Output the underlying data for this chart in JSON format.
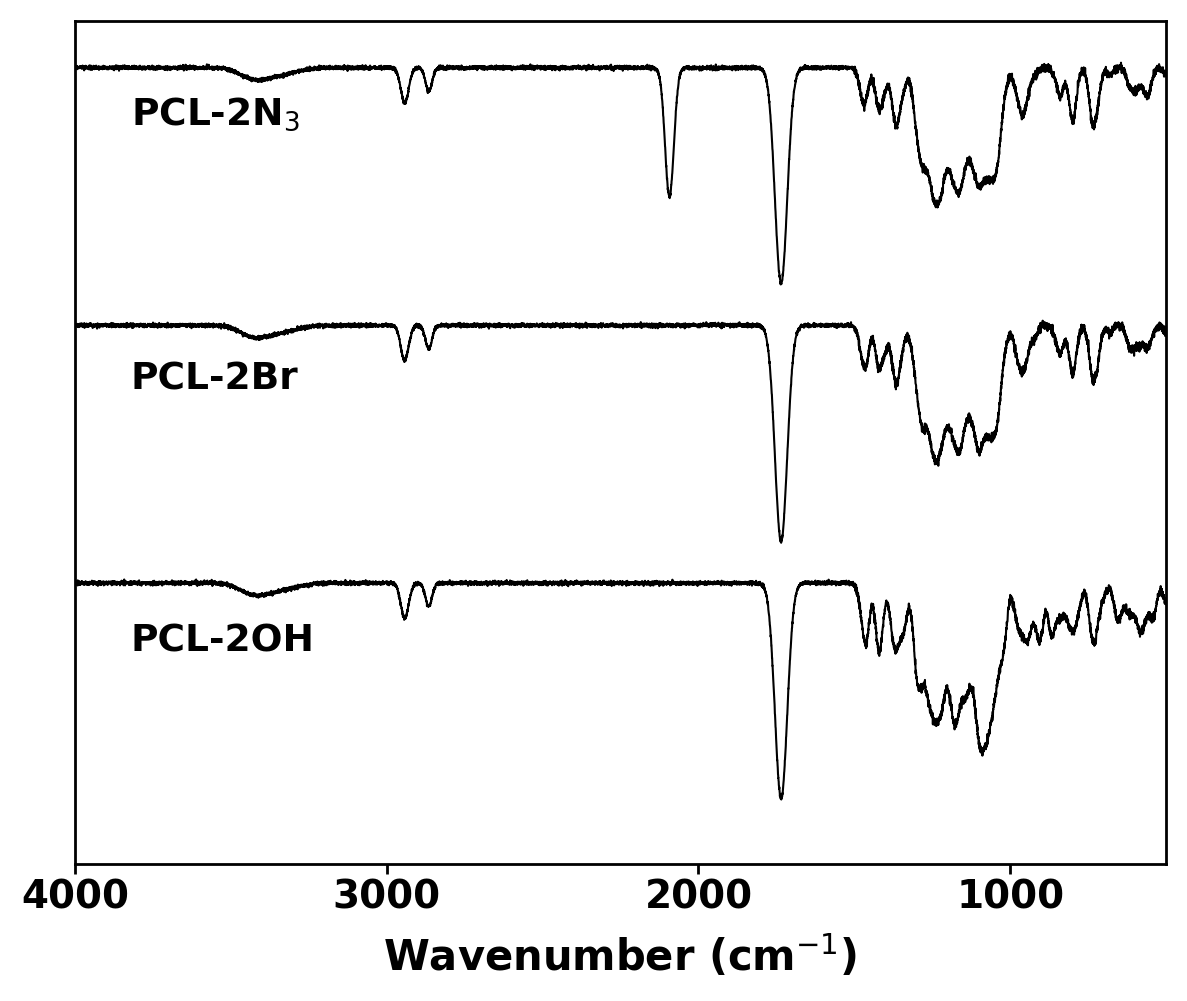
{
  "xlabel": "Wavenumber (cm$^{-1}$)",
  "xlim_left": 4000,
  "xlim_right": 500,
  "xticks": [
    4000,
    3000,
    2000,
    1000
  ],
  "labels": [
    "PCL-2N$_3$",
    "PCL-2Br",
    "PCL-2OH"
  ],
  "line_color": "#000000",
  "background_color": "#ffffff",
  "offsets": [
    2.2,
    1.1,
    0.0
  ],
  "figsize": [
    11.87,
    10.01
  ],
  "dpi": 100,
  "lw": 1.5
}
